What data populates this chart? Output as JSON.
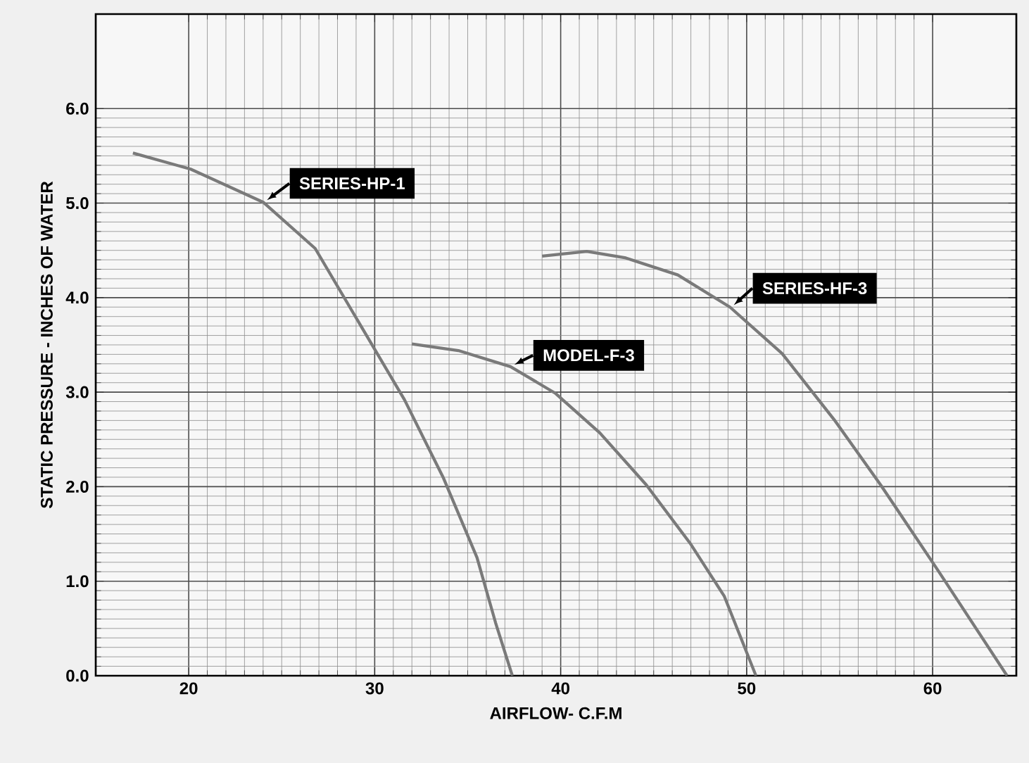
{
  "chart_data": {
    "type": "line",
    "xlabel": "AIRFLOW- C.F.M",
    "ylabel": "STATIC PRESSURE - INCHES OF WATER",
    "xlim": [
      15,
      64.5
    ],
    "ylim": [
      0,
      7
    ],
    "xticks": [
      20,
      30,
      40,
      50,
      60
    ],
    "yticks": [
      {
        "value": 0,
        "label": "0.0"
      },
      {
        "value": 1,
        "label": "1.0"
      },
      {
        "value": 2,
        "label": "2.0"
      },
      {
        "value": 3,
        "label": "3.0"
      },
      {
        "value": 4,
        "label": "4.0"
      },
      {
        "value": 5,
        "label": "5.0"
      },
      {
        "value": 6,
        "label": "6.0"
      }
    ],
    "grid": true,
    "legend": false,
    "marker": "none",
    "line_style": "solid",
    "series": [
      {
        "name": "SERIES-HP-1",
        "color": "#7a7a7a",
        "x": [
          17.0,
          20.1,
          24.0,
          26.8,
          29.5,
          31.6,
          33.7,
          35.5,
          36.5,
          37.4
        ],
        "values": [
          5.53,
          5.36,
          5.01,
          4.52,
          3.62,
          2.92,
          2.09,
          1.25,
          0.56,
          0
        ]
      },
      {
        "name": "MODEL-F-3",
        "color": "#7a7a7a",
        "x": [
          32.0,
          34.5,
          37.3,
          39.7,
          42.1,
          44.6,
          47.0,
          48.8,
          50.5
        ],
        "values": [
          3.51,
          3.44,
          3.27,
          2.99,
          2.57,
          2.02,
          1.39,
          0.84,
          0
        ]
      },
      {
        "name": "SERIES-HF-3",
        "color": "#7a7a7a",
        "x": [
          39.0,
          41.4,
          43.5,
          46.3,
          49.1,
          51.9,
          54.7,
          57.2,
          60.3,
          64.0
        ],
        "values": [
          4.44,
          4.49,
          4.42,
          4.24,
          3.9,
          3.41,
          2.71,
          2.02,
          1.11,
          0
        ]
      }
    ]
  }
}
